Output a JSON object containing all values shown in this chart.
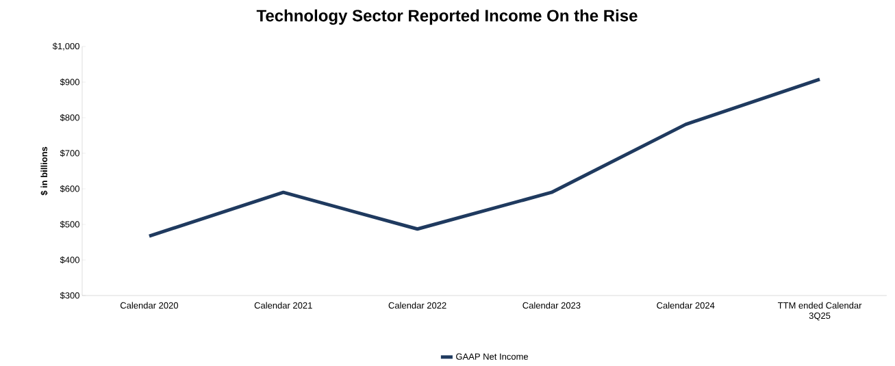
{
  "chart_data": {
    "type": "line",
    "title": "Technology Sector Reported Income On the Rise",
    "ylabel": "$ in billions",
    "categories": [
      "Calendar 2020",
      "Calendar 2021",
      "Calendar 2022",
      "Calendar 2023",
      "Calendar 2024",
      "TTM ended Calendar 3Q25"
    ],
    "series": [
      {
        "name": "GAAP Net Income",
        "color": "#1f3a5f",
        "values": [
          467,
          590,
          487,
          590,
          781,
          908
        ]
      }
    ],
    "ylim": [
      300,
      1000
    ],
    "yticks": [
      {
        "value": 300,
        "label": "$300"
      },
      {
        "value": 400,
        "label": "$400"
      },
      {
        "value": 500,
        "label": "$500"
      },
      {
        "value": 600,
        "label": "$600"
      },
      {
        "value": 700,
        "label": "$700"
      },
      {
        "value": 800,
        "label": "$800"
      },
      {
        "value": 900,
        "label": "$900"
      },
      {
        "value": 1000,
        "label": "$1,000"
      }
    ],
    "grid": false,
    "legend": "bottom",
    "marker": "none",
    "line_style": "solid"
  }
}
